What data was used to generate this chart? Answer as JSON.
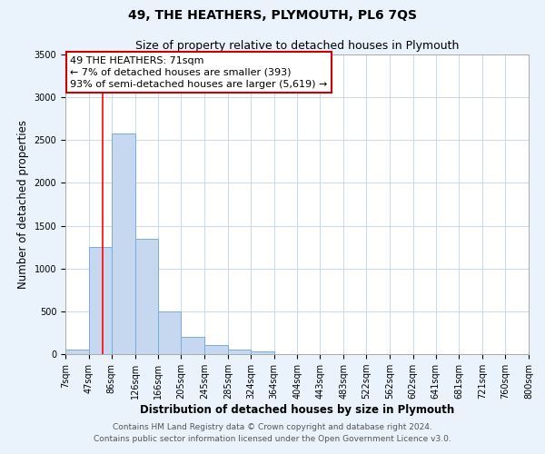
{
  "title": "49, THE HEATHERS, PLYMOUTH, PL6 7QS",
  "subtitle": "Size of property relative to detached houses in Plymouth",
  "xlabel": "Distribution of detached houses by size in Plymouth",
  "ylabel": "Number of detached properties",
  "bar_edges": [
    7,
    47,
    86,
    126,
    166,
    205,
    245,
    285,
    324,
    364,
    404,
    443,
    483,
    522,
    562,
    602,
    641,
    681,
    721,
    760,
    800
  ],
  "bar_heights": [
    50,
    1250,
    2580,
    1350,
    500,
    200,
    110,
    50,
    30,
    0,
    0,
    0,
    0,
    0,
    0,
    0,
    0,
    0,
    0,
    0
  ],
  "bar_color": "#c5d8f0",
  "bar_edge_color": "#7aaddb",
  "red_line_x": 71,
  "annotation_line1": "49 THE HEATHERS: 71sqm",
  "annotation_line2": "← 7% of detached houses are smaller (393)",
  "annotation_line3": "93% of semi-detached houses are larger (5,619) →",
  "annotation_box_color": "#ffffff",
  "annotation_box_edge_color": "#cc0000",
  "ylim": [
    0,
    3500
  ],
  "yticks": [
    0,
    500,
    1000,
    1500,
    2000,
    2500,
    3000,
    3500
  ],
  "tick_labels": [
    "7sqm",
    "47sqm",
    "86sqm",
    "126sqm",
    "166sqm",
    "205sqm",
    "245sqm",
    "285sqm",
    "324sqm",
    "364sqm",
    "404sqm",
    "443sqm",
    "483sqm",
    "522sqm",
    "562sqm",
    "602sqm",
    "641sqm",
    "681sqm",
    "721sqm",
    "760sqm",
    "800sqm"
  ],
  "footer_line1": "Contains HM Land Registry data © Crown copyright and database right 2024.",
  "footer_line2": "Contains public sector information licensed under the Open Government Licence v3.0.",
  "background_color": "#eaf3fb",
  "plot_bg_color": "#ffffff",
  "title_fontsize": 10,
  "subtitle_fontsize": 9,
  "axis_label_fontsize": 8.5,
  "tick_fontsize": 7,
  "footer_fontsize": 6.5,
  "annotation_fontsize": 8
}
